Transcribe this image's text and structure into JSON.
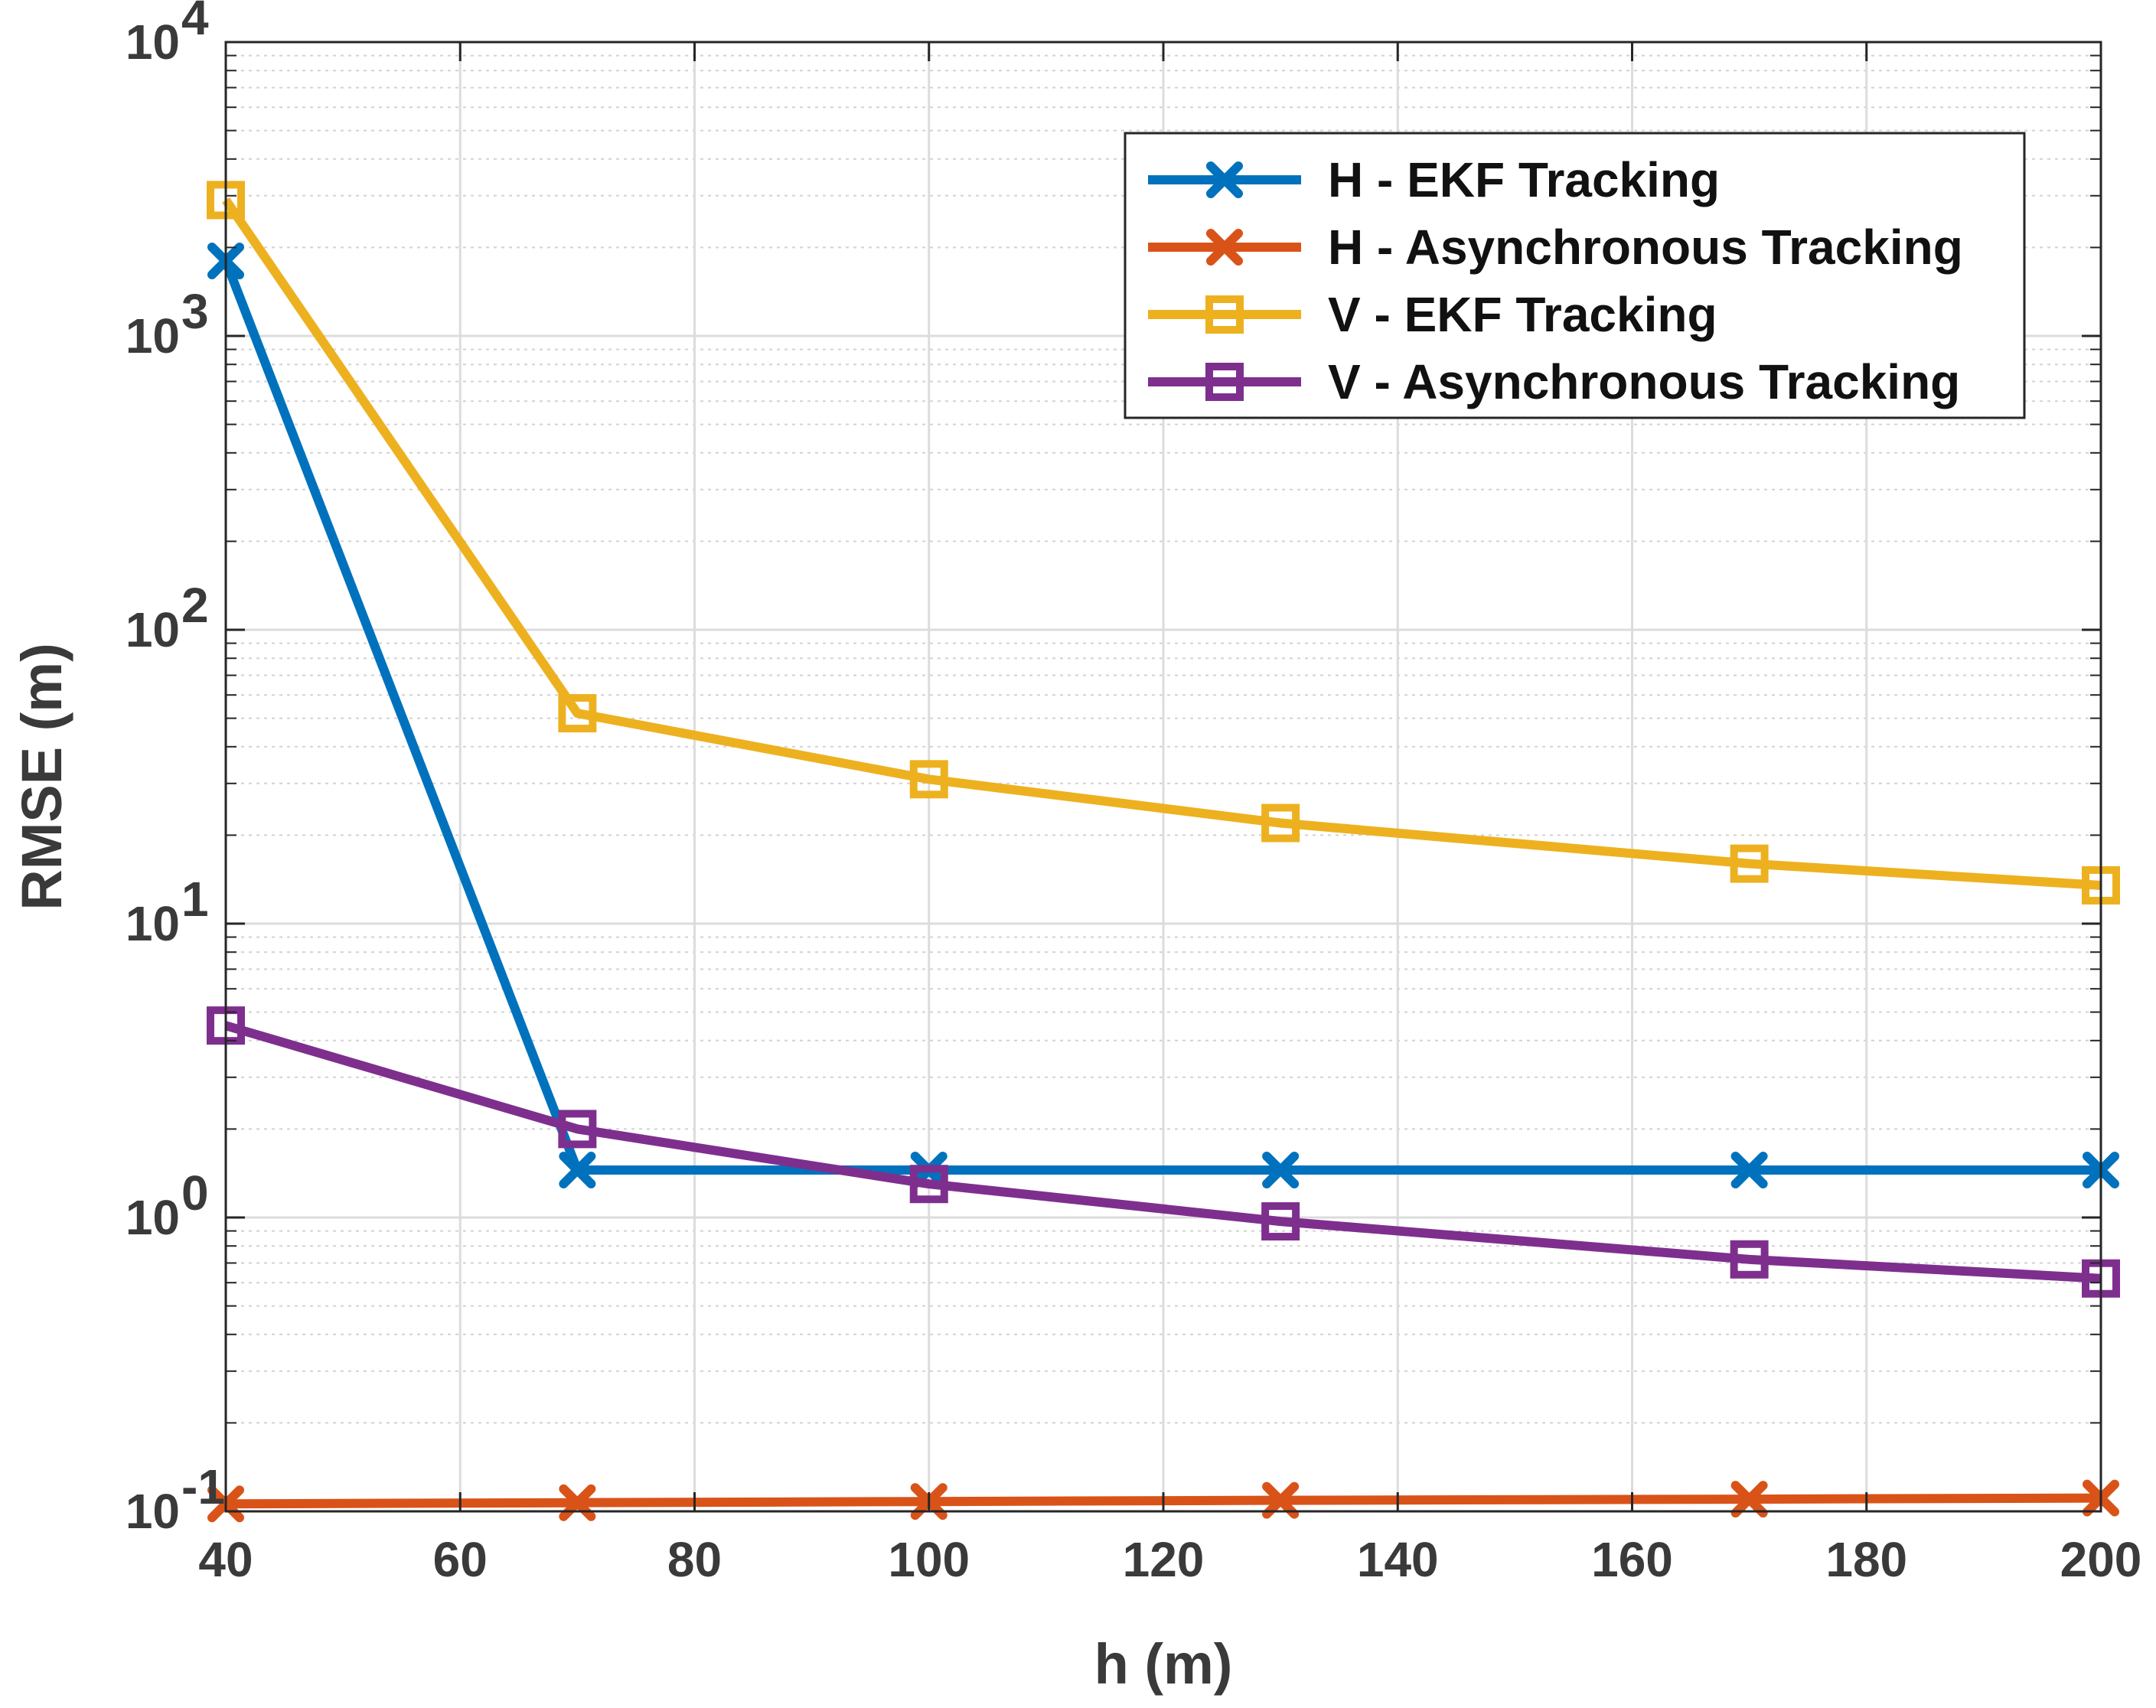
{
  "chart_data": {
    "type": "line",
    "title": "",
    "xlabel": "h (m)",
    "ylabel": "RMSE (m)",
    "xlim": [
      40,
      200
    ],
    "ylim": [
      0.1,
      10000
    ],
    "yscale": "log",
    "grid": true,
    "legend_position": "top-right",
    "x_ticks": [
      40,
      60,
      80,
      100,
      120,
      140,
      160,
      180,
      200
    ],
    "x_tick_labels": [
      "40",
      "60",
      "80",
      "100",
      "120",
      "140",
      "160",
      "180",
      "200"
    ],
    "y_ticks": [
      0.1,
      1,
      10,
      100,
      1000,
      10000
    ],
    "y_tick_labels": [
      {
        "base": "10",
        "exp": "-1"
      },
      {
        "base": "10",
        "exp": "0"
      },
      {
        "base": "10",
        "exp": "1"
      },
      {
        "base": "10",
        "exp": "2"
      },
      {
        "base": "10",
        "exp": "3"
      },
      {
        "base": "10",
        "exp": "4"
      }
    ],
    "x": [
      40,
      70,
      100,
      130,
      170,
      200
    ],
    "series": [
      {
        "name": "H - EKF Tracking",
        "color": "#0072BD",
        "marker": "x",
        "values": [
          1800,
          1.45,
          1.45,
          1.45,
          1.45,
          1.45
        ]
      },
      {
        "name": "H - Asynchronous Tracking",
        "color": "#D95319",
        "marker": "x",
        "values": [
          0.106,
          0.107,
          0.108,
          0.109,
          0.11,
          0.111
        ]
      },
      {
        "name": "V - EKF Tracking",
        "color": "#EDB120",
        "marker": "square",
        "values": [
          2900,
          52,
          31,
          22,
          16,
          13.5
        ]
      },
      {
        "name": "V - Asynchronous Tracking",
        "color": "#7E2F8E",
        "marker": "square",
        "values": [
          4.5,
          2.0,
          1.3,
          0.97,
          0.72,
          0.62
        ]
      }
    ]
  }
}
